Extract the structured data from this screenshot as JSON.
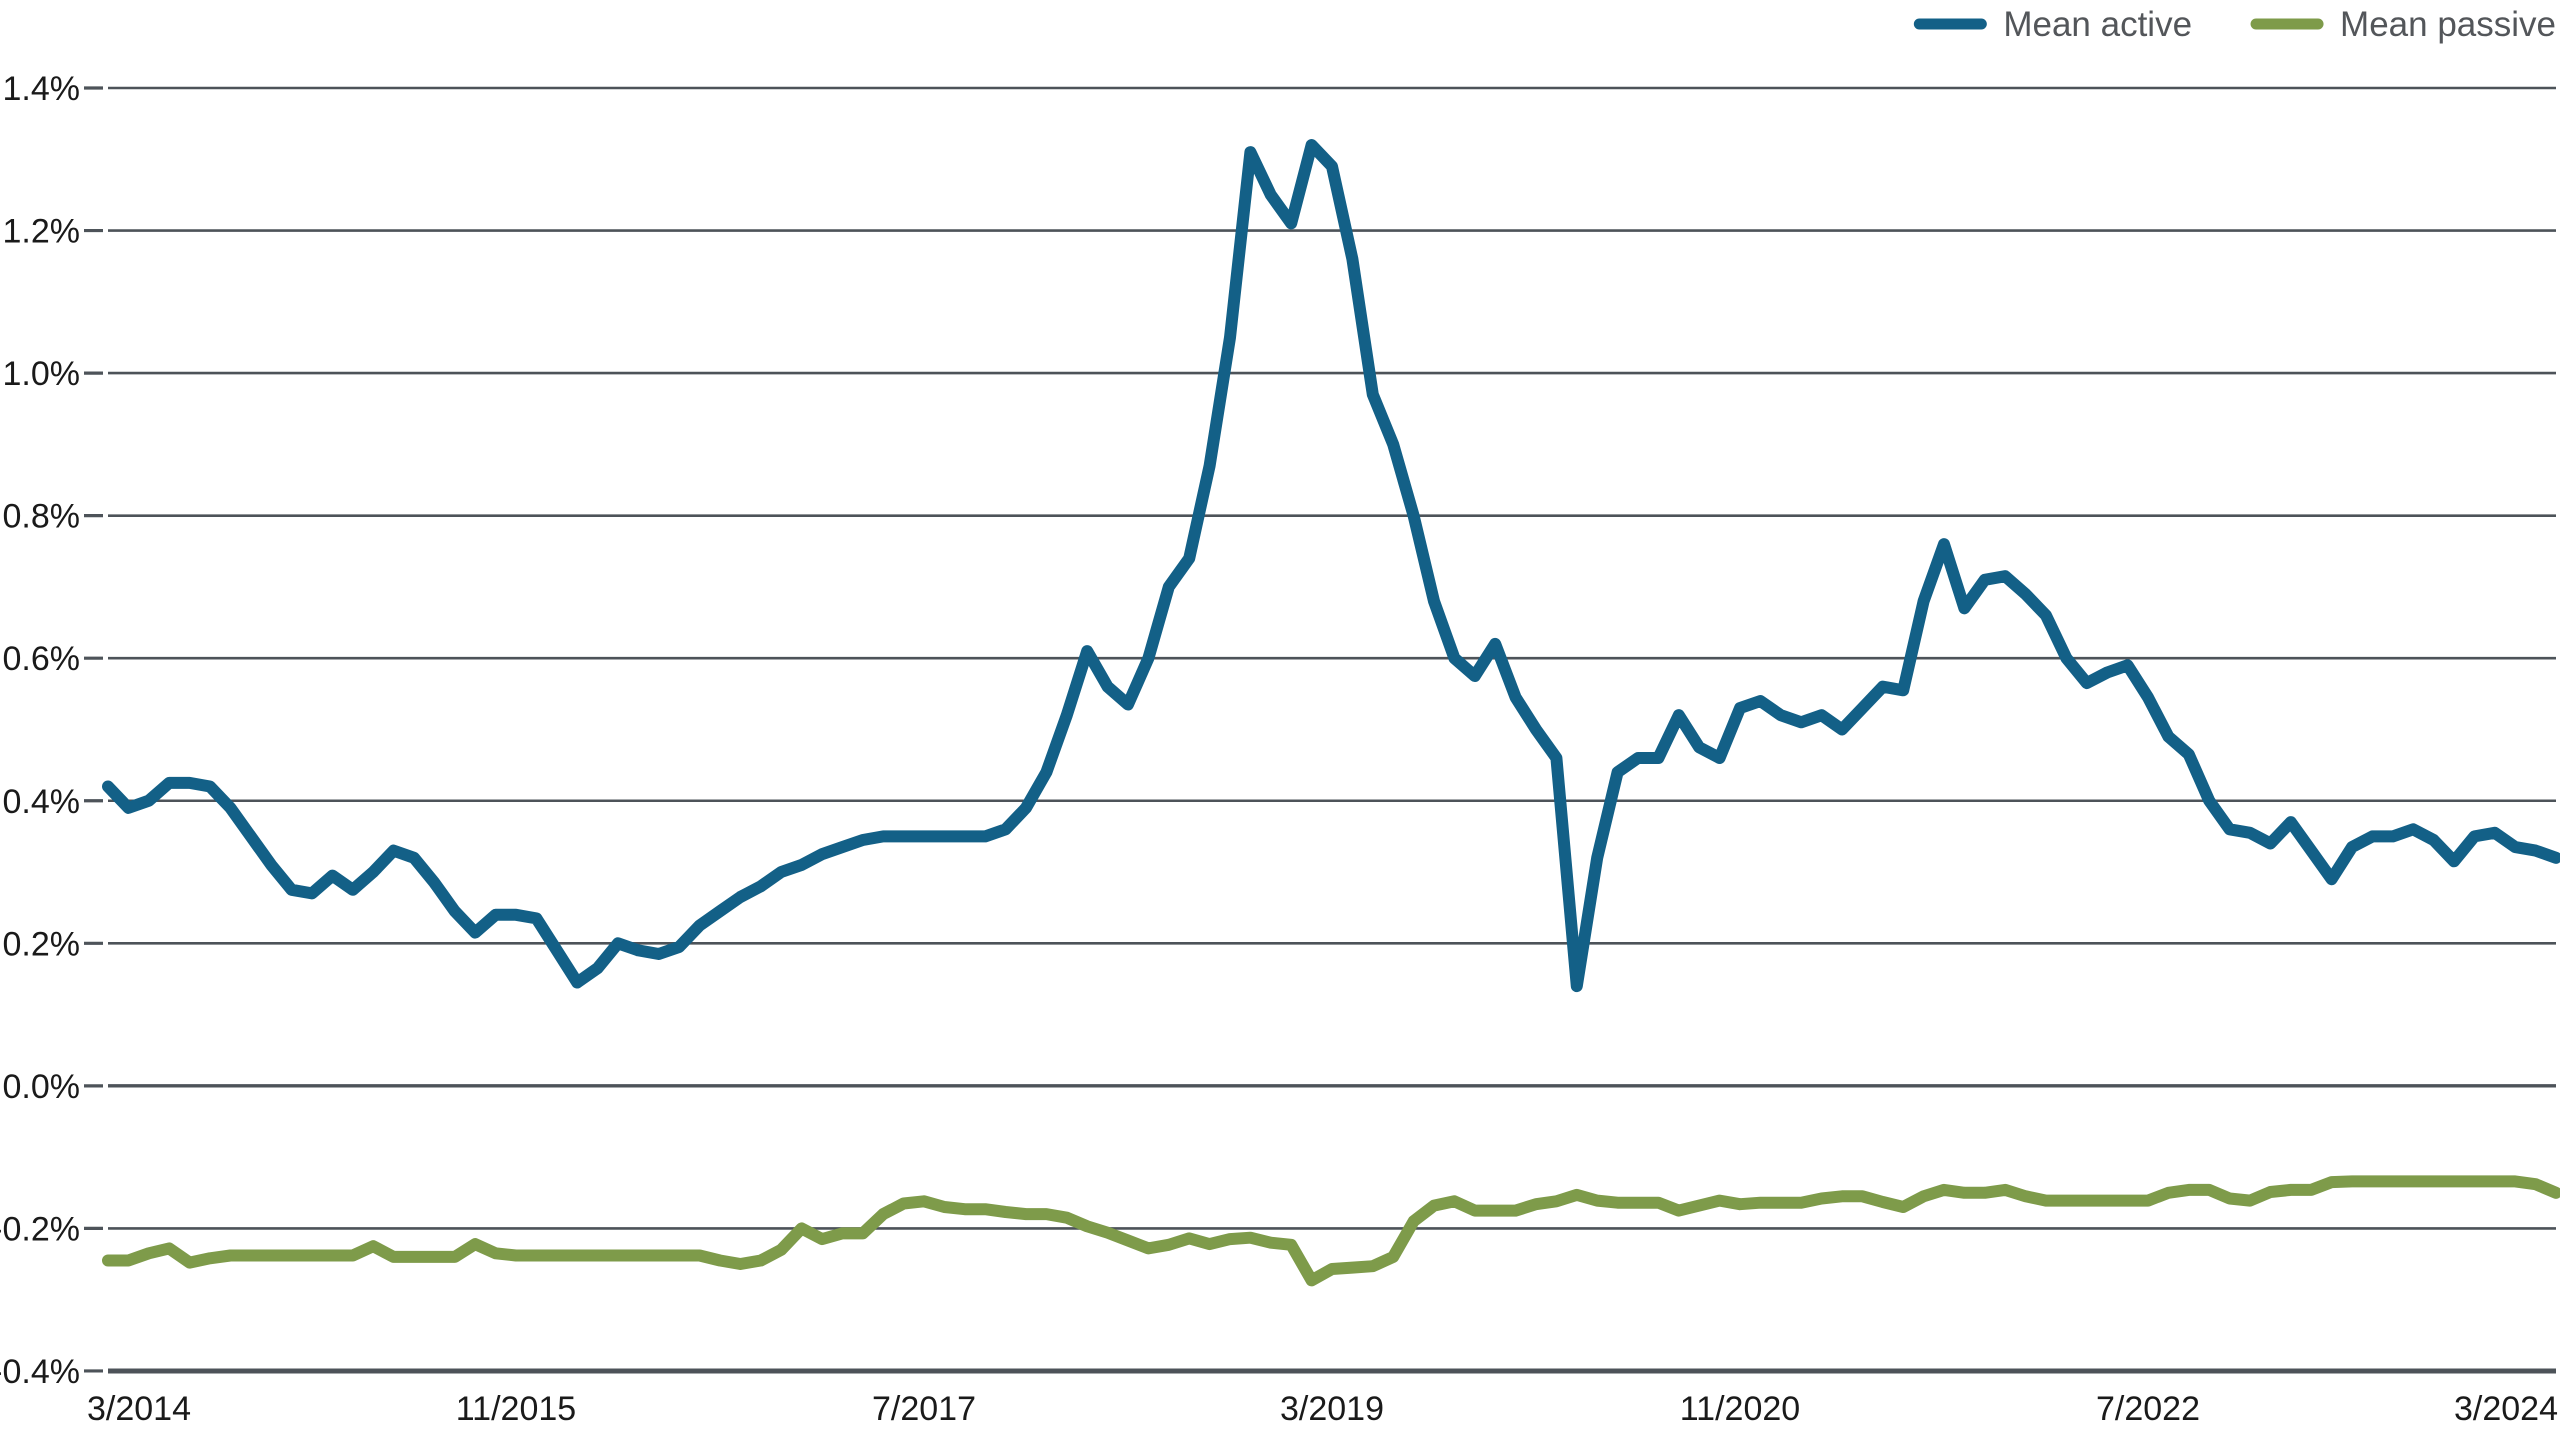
{
  "legend": {
    "items": [
      {
        "label": "Mean active",
        "color": "#136087"
      },
      {
        "label": "Mean passive",
        "color": "#7e9b4a"
      }
    ],
    "position": "top-right",
    "text_color": "#53565a"
  },
  "colors": {
    "background": "#ffffff",
    "gridline": "#4d5359",
    "axis_line": "#4d5359",
    "tick_label": "#1a1a1a",
    "active_series": "#136087",
    "passive_series": "#7e9b4a"
  },
  "chart_data": {
    "type": "line",
    "title": "",
    "xlabel": "",
    "ylabel": "",
    "grid": true,
    "legend_position": "top-right",
    "x_unit": "monthly",
    "x_start_label": "3/2014",
    "x_end_label": "3/2024",
    "x_tick_labels": [
      "3/2014",
      "11/2015",
      "7/2017",
      "3/2019",
      "11/2020",
      "7/2022",
      "3/2024"
    ],
    "x_tick_indices": [
      0,
      20,
      40,
      60,
      80,
      100,
      120
    ],
    "y_tick_labels": [
      "1.4%",
      "1.2%",
      "1.0%",
      "0.8%",
      "0.6%",
      "0.4%",
      "0.2%",
      "0.0%",
      "-0.2%",
      "-0.4%"
    ],
    "y_tick_values": [
      1.4,
      1.2,
      1.0,
      0.8,
      0.6,
      0.4,
      0.2,
      0.0,
      -0.2,
      -0.4
    ],
    "ylim": [
      -0.4,
      1.4
    ],
    "y_unit": "percent",
    "series": [
      {
        "name": "Mean active",
        "color": "#136087",
        "values": [
          0.42,
          0.39,
          0.4,
          0.425,
          0.425,
          0.42,
          0.39,
          0.35,
          0.31,
          0.275,
          0.27,
          0.295,
          0.275,
          0.3,
          0.33,
          0.32,
          0.285,
          0.245,
          0.215,
          0.24,
          0.24,
          0.235,
          0.19,
          0.145,
          0.165,
          0.2,
          0.19,
          0.185,
          0.195,
          0.225,
          0.245,
          0.265,
          0.28,
          0.3,
          0.31,
          0.325,
          0.335,
          0.345,
          0.35,
          0.35,
          0.35,
          0.35,
          0.35,
          0.35,
          0.36,
          0.39,
          0.44,
          0.52,
          0.61,
          0.56,
          0.535,
          0.6,
          0.7,
          0.74,
          0.87,
          1.05,
          1.31,
          1.25,
          1.21,
          1.32,
          1.29,
          1.16,
          0.97,
          0.9,
          0.8,
          0.68,
          0.6,
          0.575,
          0.62,
          0.545,
          0.5,
          0.46,
          0.14,
          0.32,
          0.44,
          0.46,
          0.46,
          0.52,
          0.475,
          0.46,
          0.53,
          0.54,
          0.52,
          0.51,
          0.52,
          0.5,
          0.53,
          0.56,
          0.555,
          0.68,
          0.76,
          0.67,
          0.71,
          0.715,
          0.69,
          0.66,
          0.6,
          0.565,
          0.58,
          0.59,
          0.545,
          0.49,
          0.465,
          0.4,
          0.36,
          0.355,
          0.34,
          0.37,
          0.33,
          0.29,
          0.335,
          0.35,
          0.35,
          0.36,
          0.345,
          0.315,
          0.35,
          0.355,
          0.335,
          0.33,
          0.32
        ]
      },
      {
        "name": "Mean passive",
        "color": "#7e9b4a",
        "values": [
          -0.245,
          -0.245,
          -0.235,
          -0.228,
          -0.248,
          -0.242,
          -0.238,
          -0.238,
          -0.238,
          -0.238,
          -0.238,
          -0.238,
          -0.238,
          -0.225,
          -0.24,
          -0.24,
          -0.24,
          -0.24,
          -0.222,
          -0.235,
          -0.238,
          -0.238,
          -0.238,
          -0.238,
          -0.238,
          -0.238,
          -0.238,
          -0.238,
          -0.238,
          -0.238,
          -0.245,
          -0.25,
          -0.245,
          -0.23,
          -0.2,
          -0.215,
          -0.207,
          -0.207,
          -0.18,
          -0.165,
          -0.162,
          -0.17,
          -0.173,
          -0.173,
          -0.177,
          -0.18,
          -0.18,
          -0.185,
          -0.197,
          -0.206,
          -0.217,
          -0.228,
          -0.223,
          -0.214,
          -0.222,
          -0.215,
          -0.213,
          -0.22,
          -0.223,
          -0.273,
          -0.257,
          -0.255,
          -0.253,
          -0.24,
          -0.19,
          -0.168,
          -0.162,
          -0.175,
          -0.175,
          -0.175,
          -0.166,
          -0.162,
          -0.153,
          -0.161,
          -0.164,
          -0.164,
          -0.164,
          -0.175,
          -0.168,
          -0.161,
          -0.166,
          -0.164,
          -0.164,
          -0.164,
          -0.158,
          -0.155,
          -0.155,
          -0.163,
          -0.17,
          -0.155,
          -0.146,
          -0.15,
          -0.15,
          -0.146,
          -0.155,
          -0.161,
          -0.161,
          -0.161,
          -0.161,
          -0.161,
          -0.161,
          -0.15,
          -0.146,
          -0.146,
          -0.158,
          -0.161,
          -0.149,
          -0.146,
          -0.146,
          -0.135,
          -0.134,
          -0.134,
          -0.134,
          -0.134,
          -0.134,
          -0.134,
          -0.134,
          -0.134,
          -0.134,
          -0.138,
          -0.15
        ]
      }
    ]
  }
}
